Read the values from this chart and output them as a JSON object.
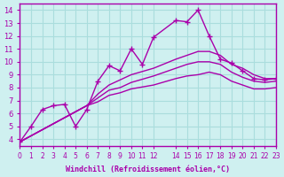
{
  "xlabel": "Windchill (Refroidissement éolien,°C)",
  "bg_color": "#cff0f0",
  "line_color": "#aa00aa",
  "grid_color": "#aadddd",
  "xlim": [
    0,
    23
  ],
  "ylim": [
    3.5,
    14.5
  ],
  "xticks": [
    0,
    1,
    2,
    3,
    4,
    5,
    6,
    7,
    8,
    9,
    10,
    11,
    12,
    14,
    15,
    16,
    17,
    18,
    19,
    20,
    21,
    22,
    23
  ],
  "yticks": [
    4,
    5,
    6,
    7,
    8,
    9,
    10,
    11,
    12,
    13,
    14
  ],
  "lines": [
    {
      "x": [
        0,
        1,
        2,
        3,
        4,
        5,
        6,
        7,
        8,
        9,
        10,
        11,
        12,
        14,
        15,
        16,
        17,
        18,
        19,
        20,
        21,
        22,
        23
      ],
      "y": [
        3.8,
        5.0,
        6.3,
        6.6,
        6.7,
        5.0,
        6.3,
        8.5,
        9.7,
        9.3,
        11.0,
        9.8,
        11.9,
        13.2,
        13.1,
        14.0,
        12.0,
        10.2,
        9.9,
        9.3,
        8.7,
        8.6,
        8.7
      ],
      "marker": "+"
    },
    {
      "x": [
        0,
        6,
        7,
        8,
        9,
        10,
        12,
        14,
        15,
        16,
        17,
        18,
        19,
        20,
        21,
        22,
        23
      ],
      "y": [
        3.8,
        6.6,
        7.5,
        8.2,
        8.6,
        9.0,
        9.5,
        10.2,
        10.5,
        10.8,
        10.8,
        10.5,
        9.8,
        9.5,
        9.0,
        8.7,
        8.7
      ],
      "marker": null
    },
    {
      "x": [
        0,
        6,
        7,
        8,
        9,
        10,
        12,
        14,
        15,
        16,
        17,
        18,
        19,
        20,
        21,
        22,
        23
      ],
      "y": [
        3.8,
        6.6,
        7.2,
        7.8,
        8.0,
        8.4,
        8.9,
        9.5,
        9.8,
        10.0,
        10.0,
        9.8,
        9.2,
        8.8,
        8.5,
        8.4,
        8.5
      ],
      "marker": null
    },
    {
      "x": [
        0,
        6,
        7,
        8,
        9,
        10,
        12,
        14,
        15,
        16,
        17,
        18,
        19,
        20,
        21,
        22,
        23
      ],
      "y": [
        3.8,
        6.6,
        6.9,
        7.4,
        7.6,
        7.9,
        8.2,
        8.7,
        8.9,
        9.0,
        9.2,
        9.0,
        8.5,
        8.2,
        7.9,
        7.9,
        8.0
      ],
      "marker": null
    }
  ]
}
